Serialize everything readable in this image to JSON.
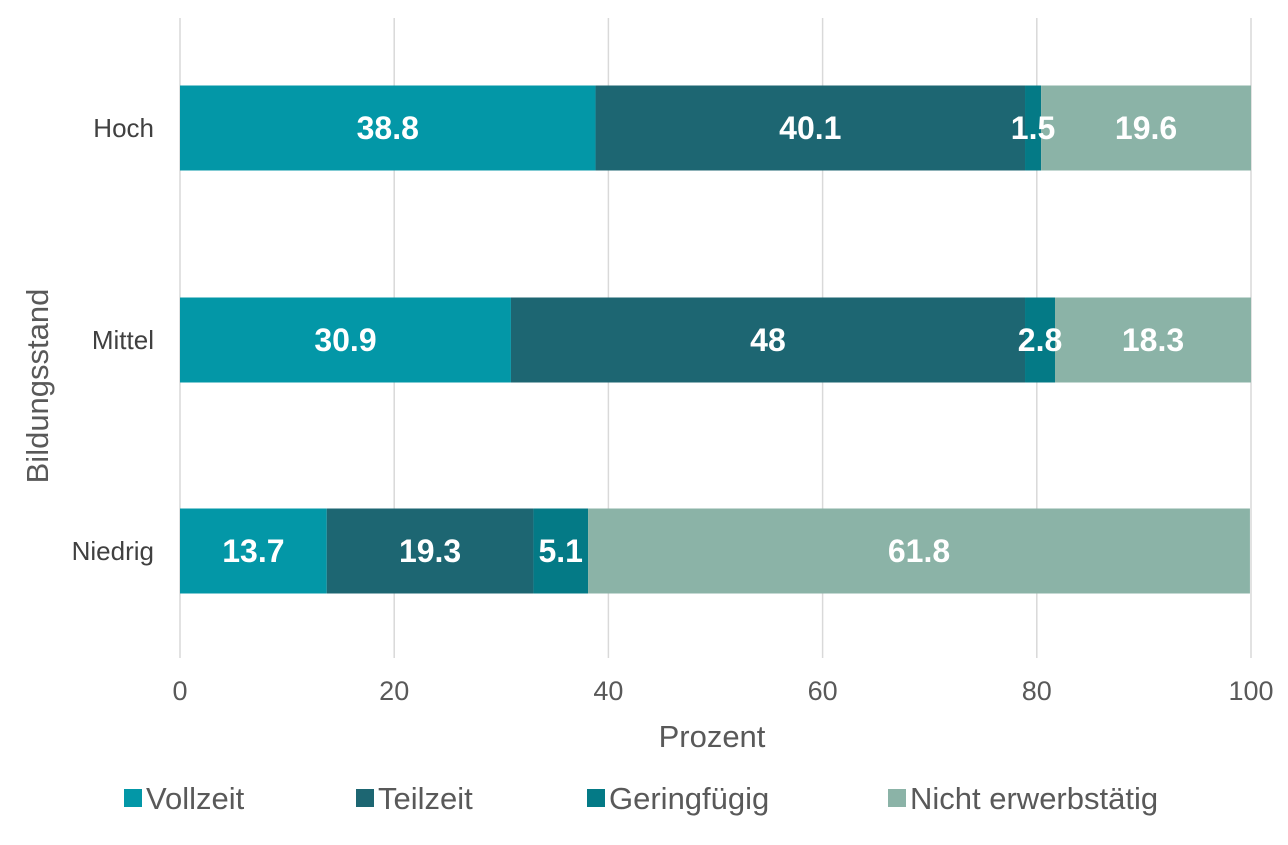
{
  "chart_data": {
    "type": "bar",
    "orientation": "horizontal",
    "stacked": true,
    "categories": [
      "Hoch",
      "Mittel",
      "Niedrig"
    ],
    "series": [
      {
        "name": "Vollzeit",
        "color": "#0397a7",
        "values": [
          38.8,
          30.9,
          13.7
        ]
      },
      {
        "name": "Teilzeit",
        "color": "#1d6672",
        "values": [
          40.1,
          48,
          19.3
        ]
      },
      {
        "name": "Geringfügig",
        "color": "#047a86",
        "values": [
          1.5,
          2.8,
          5.1
        ]
      },
      {
        "name": "Nicht erwerbstätig",
        "color": "#8bb3a7",
        "values": [
          19.6,
          18.3,
          61.8
        ]
      }
    ],
    "data_labels": [
      [
        "38.8",
        "40.1",
        "1.5",
        "19.6"
      ],
      [
        "30.9",
        "48",
        "2.8",
        "18.3"
      ],
      [
        "13.7",
        "19.3",
        "5.1",
        "61.8"
      ]
    ],
    "xlabel": "Prozent",
    "ylabel": "Bildungsstand",
    "xlim": [
      0,
      100
    ],
    "x_ticks": [
      0,
      20,
      40,
      60,
      80,
      100
    ],
    "x_tick_labels": [
      "0",
      "20",
      "40",
      "60",
      "80",
      "100"
    ],
    "grid": "vertical",
    "legend": "bottom"
  }
}
